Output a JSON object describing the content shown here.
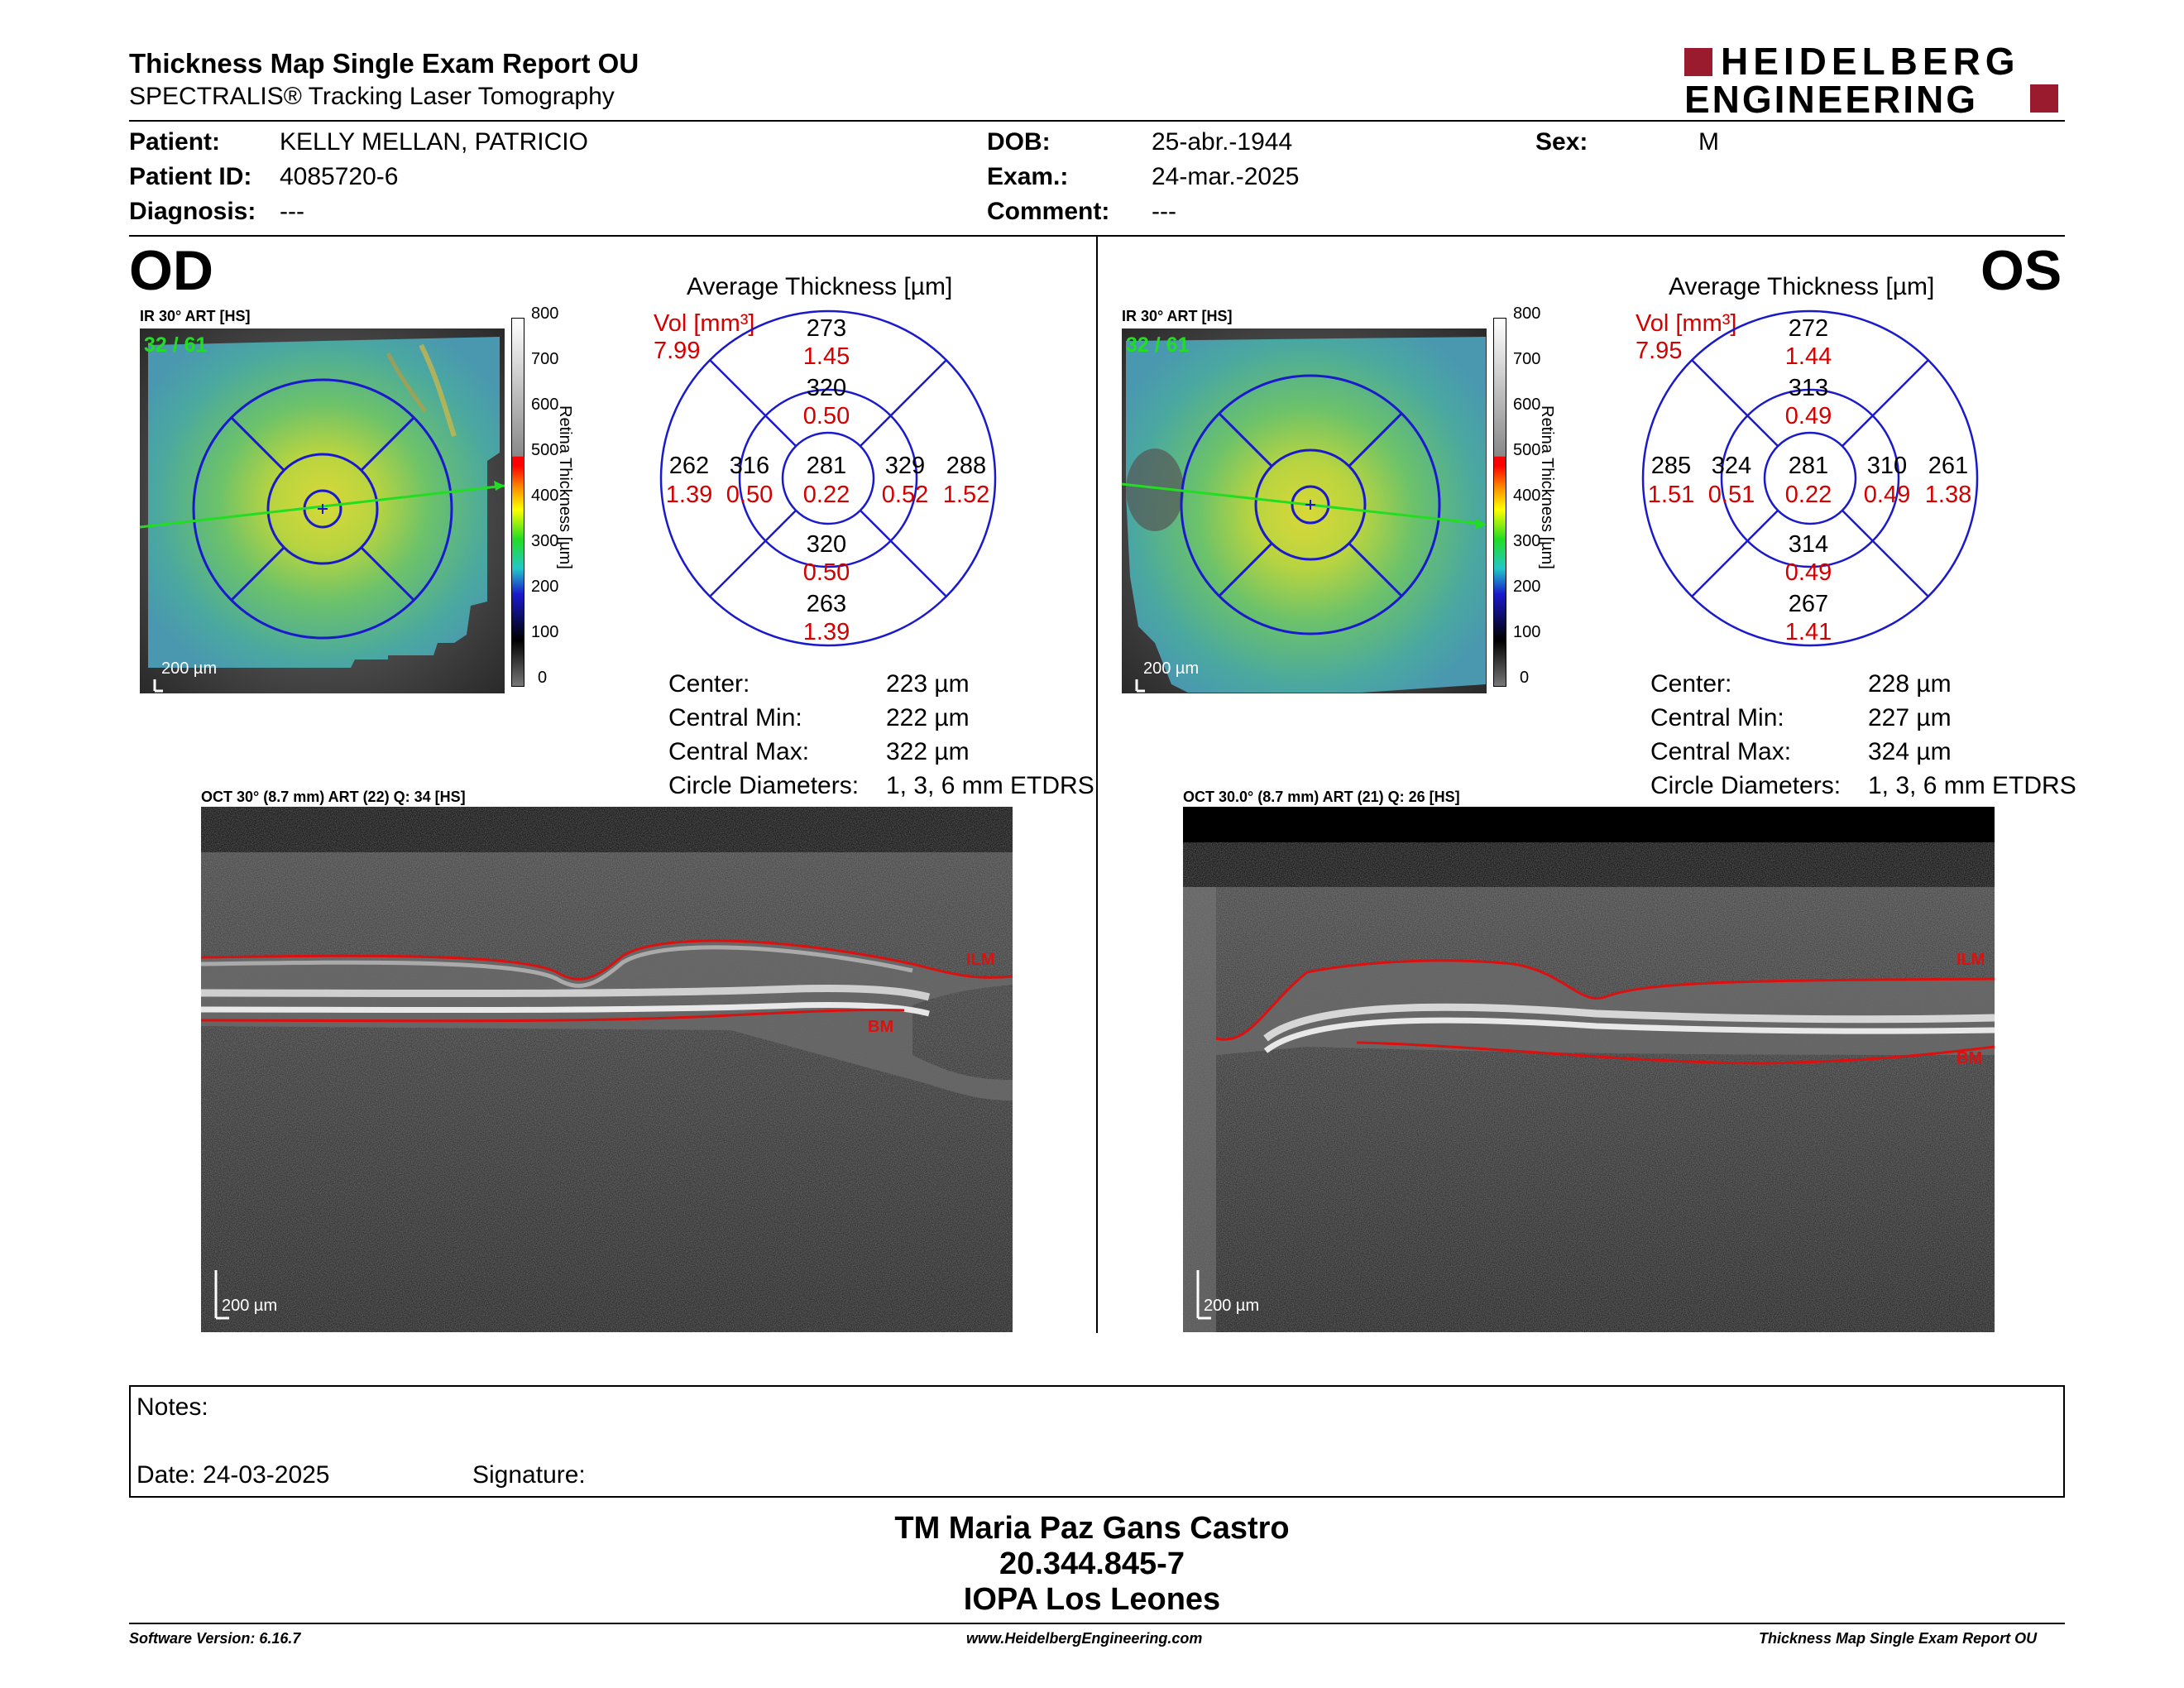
{
  "header": {
    "title": "Thickness Map Single Exam Report OU",
    "subtitle": "SPECTRALIS® Tracking Laser Tomography",
    "logo_line1": "HEIDELBERG",
    "logo_line2": "ENGINEERING"
  },
  "patient": {
    "patient_label": "Patient:",
    "patient_value": "KELLY MELLAN, PATRICIO",
    "id_label": "Patient ID:",
    "id_value": "4085720-6",
    "diag_label": "Diagnosis:",
    "diag_value": "---",
    "dob_label": "DOB:",
    "dob_value": "25-abr.-1944",
    "exam_label": "Exam.:",
    "exam_value": "24-mar.-2025",
    "comment_label": "Comment:",
    "comment_value": "---",
    "sex_label": "Sex:",
    "sex_value": "M"
  },
  "od": {
    "eye": "OD",
    "ir_label": "IR 30° ART [HS]",
    "frames": "32 / 61",
    "scale": "200 µm",
    "avg_title": "Average Thickness [µm]",
    "vol_label": "Vol [mm³]",
    "vol_value": "7.99",
    "grid": {
      "outer_top": "273",
      "outer_top_vol": "1.45",
      "inner_top": "320",
      "inner_top_vol": "0.50",
      "outer_left": "262",
      "outer_left_vol": "1.39",
      "inner_left": "316",
      "inner_left_vol": "0.50",
      "center": "281",
      "center_vol": "0.22",
      "inner_right": "329",
      "inner_right_vol": "0.52",
      "outer_right": "288",
      "outer_right_vol": "1.52",
      "inner_bottom": "320",
      "inner_bottom_vol": "0.50",
      "outer_bottom": "263",
      "outer_bottom_vol": "1.39"
    },
    "stats": {
      "center_label": "Center:",
      "center_value": "223 µm",
      "min_label": "Central Min:",
      "min_value": "222 µm",
      "max_label": "Central Max:",
      "max_value": "322 µm",
      "diam_label": "Circle Diameters:",
      "diam_value": "1, 3, 6 mm ETDRS"
    },
    "oct_label": "OCT 30° (8.7 mm) ART (22) Q: 34 [HS]",
    "ilm": "ILM",
    "bm": "BM",
    "oct_scale": "200 µm"
  },
  "os": {
    "eye": "OS",
    "ir_label": "IR 30° ART [HS]",
    "frames": "32 / 61",
    "scale": "200 µm",
    "avg_title": "Average Thickness [µm]",
    "vol_label": "Vol [mm³]",
    "vol_value": "7.95",
    "grid": {
      "outer_top": "272",
      "outer_top_vol": "1.44",
      "inner_top": "313",
      "inner_top_vol": "0.49",
      "outer_left": "285",
      "outer_left_vol": "1.51",
      "inner_left": "324",
      "inner_left_vol": "0.51",
      "center": "281",
      "center_vol": "0.22",
      "inner_right": "310",
      "inner_right_vol": "0.49",
      "outer_right": "261",
      "outer_right_vol": "1.38",
      "inner_bottom": "314",
      "inner_bottom_vol": "0.49",
      "outer_bottom": "267",
      "outer_bottom_vol": "1.41"
    },
    "stats": {
      "center_label": "Center:",
      "center_value": "228 µm",
      "min_label": "Central Min:",
      "min_value": "227 µm",
      "max_label": "Central Max:",
      "max_value": "324 µm",
      "diam_label": "Circle Diameters:",
      "diam_value": "1, 3, 6 mm ETDRS"
    },
    "oct_label": "OCT 30.0° (8.7 mm) ART (21) Q: 26 [HS]",
    "ilm": "ILM",
    "bm": "BM",
    "oct_scale": "200 µm"
  },
  "colorbar": {
    "ticks": [
      "800",
      "700",
      "600",
      "500",
      "400",
      "300",
      "200",
      "100",
      "0"
    ],
    "title": "Retina Thickness [µm]"
  },
  "notes": {
    "notes_label": "Notes:",
    "date_label": "Date: 24-03-2025",
    "signature_label": "Signature:"
  },
  "signature_block": {
    "name": "TM Maria Paz Gans Castro",
    "rut": "20.344.845-7",
    "institution": "IOPA Los Leones"
  },
  "footer": {
    "software": "Software Version: 6.16.7",
    "website": "www.HeidelbergEngineering.com",
    "report": "Thickness Map Single Exam Report OU"
  },
  "colors": {
    "volume_red": "#d40000",
    "etdrs_blue": "#1a1acc",
    "brand_red": "#9b1b2e",
    "ilm_bm_red": "#cc1010"
  }
}
